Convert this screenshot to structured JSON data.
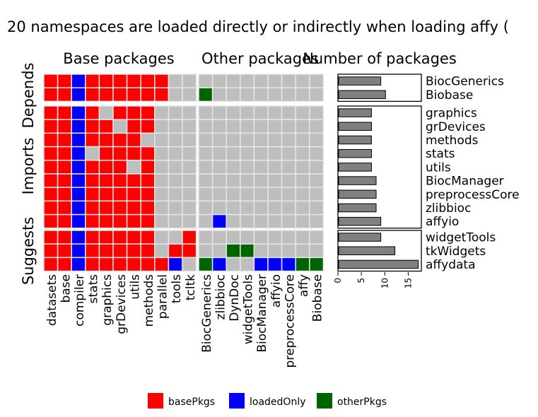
{
  "chart_data": {
    "type": "heatmap",
    "title": "20 namespaces are loaded directly or indirectly when loading affy (",
    "facets": {
      "columns": [
        "Base packages",
        "Other packages",
        "Number of packages"
      ],
      "rows": [
        "Depends",
        "Imports",
        "Suggests"
      ]
    },
    "base_columns": [
      "datasets",
      "base",
      "compiler",
      "stats",
      "graphics",
      "grDevices",
      "utils",
      "methods",
      "parallel",
      "tools",
      "tcltk"
    ],
    "other_columns": [
      "BiocGenerics",
      "zlibbioc",
      "DynDoc",
      "widgetTools",
      "BiocManager",
      "affyio",
      "preprocessCore",
      "affy",
      "Biobase"
    ],
    "row_groups": [
      {
        "group": "Depends",
        "rows": [
          "BiocGenerics",
          "Biobase"
        ]
      },
      {
        "group": "Imports",
        "rows": [
          "graphics",
          "grDevices",
          "methods",
          "stats",
          "utils",
          "BiocManager",
          "preprocessCore",
          "zlibbioc",
          "affyio"
        ]
      },
      {
        "group": "Suggests",
        "rows": [
          "widgetTools",
          "tkWidgets",
          "affydata"
        ]
      }
    ],
    "value_legend": {
      "B": {
        "label": "basePkgs",
        "color": "#ff0000"
      },
      "L": {
        "label": "loadedOnly",
        "color": "#0000ff"
      },
      "O": {
        "label": "otherPkgs",
        "color": "#006400"
      },
      "E": {
        "label": "",
        "color": "#bebebe"
      }
    },
    "base_matrix": [
      "BBLBBBBBBEE",
      "BBLBBBBBBEE",
      "BBLBEBBBEEE",
      "BBLBBEBBEEE",
      "BBLBBBBEEEE",
      "BBLEBBBBEEE",
      "BBLBBBEBEEE",
      "BBLBBBBBEEE",
      "BBLBBBBBEEE",
      "BBLBBBBBEEE",
      "BBLBBBBBEEE",
      "BBLBBBBBEEB",
      "BBLBBBBBEBB",
      "BBLBBBBBBLE"
    ],
    "other_matrix": [
      "EEEEEEEEE",
      "OEEEEEEEE",
      "EEEEEEEEE",
      "EEEEEEEEE",
      "EEEEEEEEE",
      "EEEEEEEEE",
      "EEEEEEEEE",
      "EEEEEEEEE",
      "EEEEEEEEE",
      "EEEEEEEEE",
      "ELEEEEEEE",
      "EEEEEEEEE",
      "EEOOEEEEE",
      "OLEELLLOO"
    ],
    "bar_values": [
      9,
      10,
      7,
      7,
      7,
      7,
      7,
      8,
      8,
      8,
      9,
      9,
      12,
      17
    ],
    "bar_axis": {
      "ticks": [
        0,
        5,
        10,
        15
      ],
      "xlim": [
        0,
        17.8
      ]
    },
    "legend_items": [
      {
        "label": "basePkgs",
        "color": "#ff0000"
      },
      {
        "label": "loadedOnly",
        "color": "#0000ff"
      },
      {
        "label": "otherPkgs",
        "color": "#006400"
      }
    ],
    "bar_fill": "#808080"
  }
}
